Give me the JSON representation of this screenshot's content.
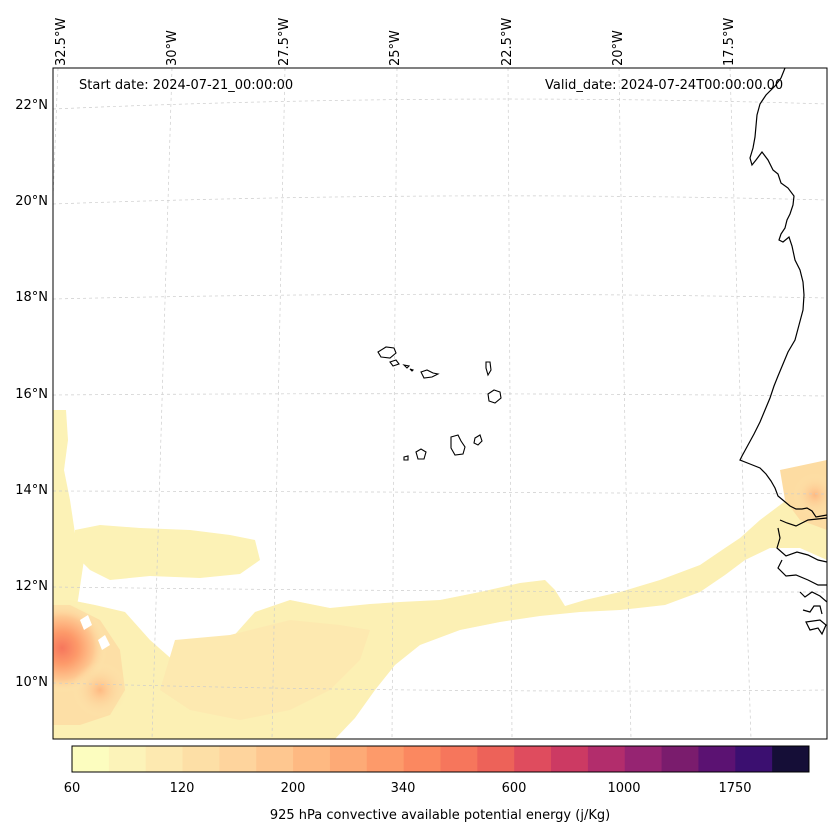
{
  "map": {
    "start_date": "Start date: 2024-07-21_00:00:00",
    "valid_date": "Valid_date: 2024-07-24T00:00:00.00",
    "lon_labels": [
      "32.5°W",
      "30°W",
      "27.5°W",
      "25°W",
      "22.5°W",
      "20°W",
      "17.5°W"
    ],
    "lat_labels": [
      "22°N",
      "20°N",
      "18°N",
      "16°N",
      "14°N",
      "12°N",
      "10°N"
    ]
  },
  "colorbar": {
    "title": "925 hPa convective available potential energy (j/Kg)",
    "tick_labels": [
      "60",
      "120",
      "200",
      "340",
      "600",
      "1000",
      "1750"
    ],
    "colors": [
      "#fcfdbf",
      "#fcf3b9",
      "#fde9b0",
      "#fddfa6",
      "#fed49d",
      "#fec790",
      "#feb982",
      "#fdaa76",
      "#fd9a6a",
      "#fb8860",
      "#f6765c",
      "#ed6259",
      "#df4c5e",
      "#cc3a63",
      "#b22d6c",
      "#962472",
      "#7a1c6d",
      "#5b1272",
      "#3b0f70",
      "#150e37"
    ]
  }
}
